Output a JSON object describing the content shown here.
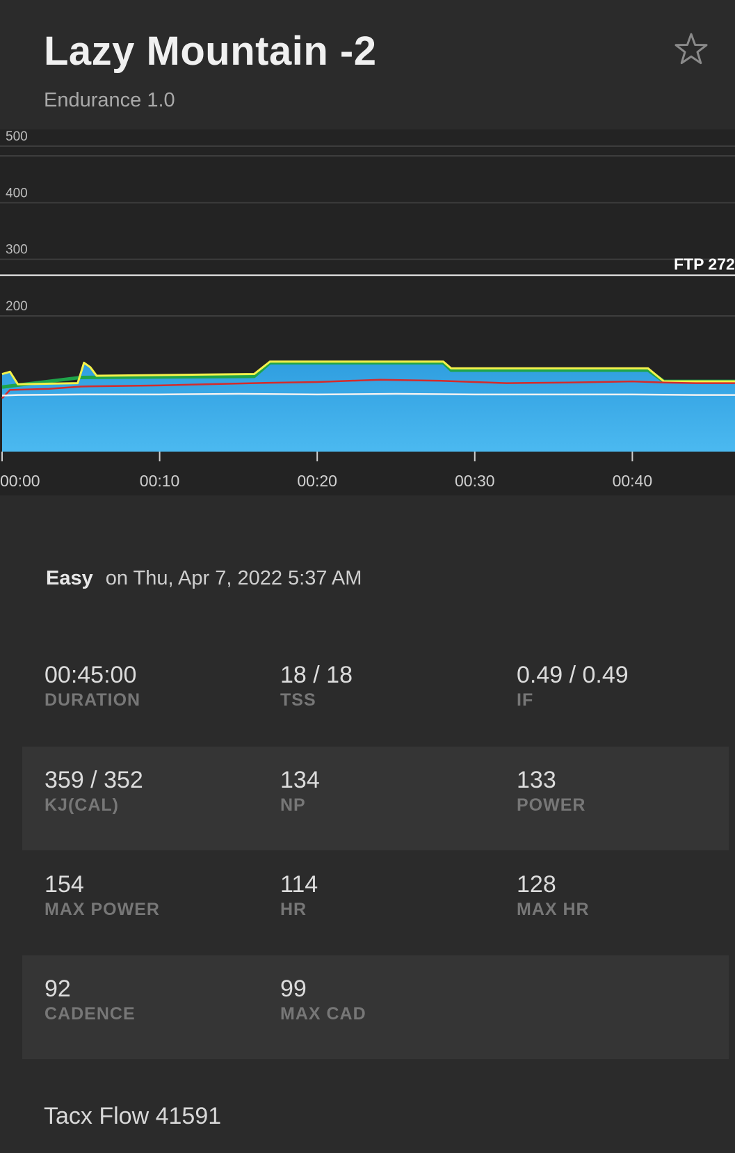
{
  "header": {
    "title": "Lazy Mountain -2",
    "subtitle": "Endurance 1.0",
    "favorite_icon": "star-icon"
  },
  "chart_data": {
    "type": "area",
    "ylim": [
      0,
      550
    ],
    "y_ticks": [
      {
        "value": 200,
        "label": "200"
      },
      {
        "value": 300,
        "label": "300"
      },
      {
        "value": 400,
        "label": "400"
      },
      {
        "value": 500,
        "label": "500"
      }
    ],
    "xlim": [
      0,
      44
    ],
    "x_ticks": [
      {
        "value": 0,
        "label": "00:00"
      },
      {
        "value": 10,
        "label": "00:10"
      },
      {
        "value": 20,
        "label": "00:20"
      },
      {
        "value": 30,
        "label": "00:30"
      },
      {
        "value": 40,
        "label": "00:40"
      }
    ],
    "ftp": {
      "value": 272,
      "label": "FTP 272"
    },
    "grid": true,
    "colors": {
      "area": "#3aa8e8",
      "target": "#1fa44a",
      "power": "#f4f24a",
      "heart_rate": "#d42b2b",
      "cadence": "#f2f2f2"
    },
    "series": [
      {
        "key": "target",
        "x": [
          0,
          5,
          16,
          17,
          28,
          28.5,
          41,
          42,
          44
        ],
        "y": [
          105,
          122,
          124,
          148,
          148,
          135,
          135,
          115,
          115
        ]
      },
      {
        "key": "power",
        "x": [
          0,
          0.5,
          1,
          4.8,
          5.2,
          5.6,
          6,
          16,
          17,
          28,
          28.5,
          41,
          42,
          44
        ],
        "y": [
          128,
          132,
          110,
          112,
          148,
          140,
          125,
          128,
          150,
          150,
          138,
          138,
          115,
          115
        ]
      },
      {
        "key": "heart_rate",
        "x": [
          0,
          0.5,
          3,
          5,
          10,
          16,
          20,
          24,
          28,
          32,
          36,
          40,
          42,
          44
        ],
        "y": [
          85,
          100,
          102,
          106,
          108,
          112,
          114,
          118,
          116,
          112,
          113,
          115,
          113,
          112
        ]
      },
      {
        "key": "cadence",
        "x": [
          0,
          1,
          5,
          10,
          15,
          20,
          25,
          30,
          35,
          40,
          44
        ],
        "y": [
          90,
          91,
          92,
          92,
          93,
          92,
          93,
          92,
          92,
          92,
          91
        ]
      }
    ]
  },
  "summary": {
    "difficulty": "Easy",
    "date_text": "on Thu, Apr 7, 2022 5:37 AM"
  },
  "stats": [
    [
      {
        "value": "00:45:00",
        "label": "DURATION"
      },
      {
        "value": "18 / 18",
        "label": "TSS"
      },
      {
        "value": "0.49 / 0.49",
        "label": "IF"
      }
    ],
    [
      {
        "value": "359 / 352",
        "label": "KJ(CAL)"
      },
      {
        "value": "134",
        "label": "NP"
      },
      {
        "value": "133",
        "label": "POWER"
      }
    ],
    [
      {
        "value": "154",
        "label": "MAX POWER"
      },
      {
        "value": "114",
        "label": "HR"
      },
      {
        "value": "128",
        "label": "MAX HR"
      }
    ],
    [
      {
        "value": "92",
        "label": "CADENCE"
      },
      {
        "value": "99",
        "label": "MAX CAD"
      }
    ]
  ],
  "device": "Tacx Flow 41591"
}
